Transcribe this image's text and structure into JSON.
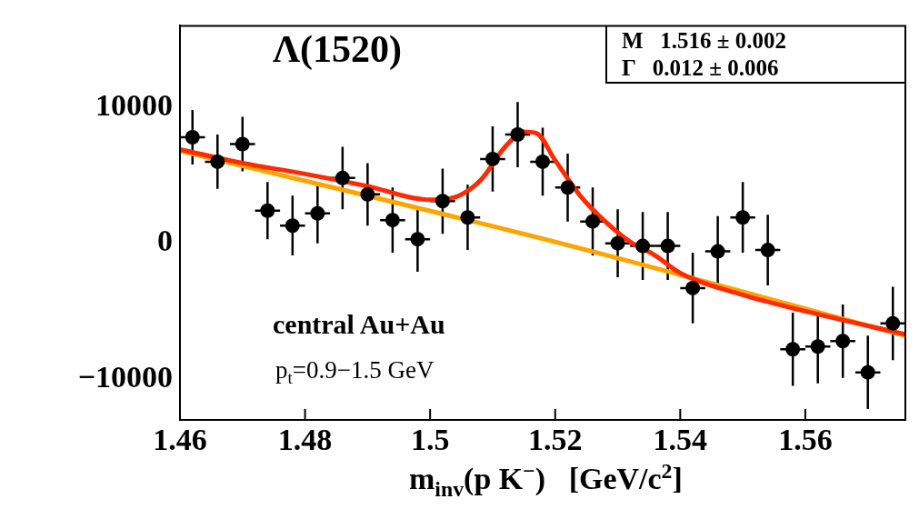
{
  "chart_data": {
    "type": "scatter",
    "title": "Λ(1520)",
    "xlabel": "m$_{inv}$(p K$^{−}$)   [GeV/c$^{2}$]",
    "annotations": [
      "M   1.516 ± 0.002",
      "Γ   0.012 ± 0.006",
      "central Au+Au",
      "p$_{t}$=0.9−1.5 GeV"
    ],
    "xlim": [
      1.46,
      1.576
    ],
    "xticks": [
      1.46,
      1.48,
      1.5,
      1.52,
      1.54,
      1.56
    ],
    "ylim": [
      -13000,
      16000
    ],
    "yticks": [
      {
        "value": -10000,
        "label": "−10000"
      },
      0,
      10000
    ],
    "grid": false,
    "legend": false,
    "series": [
      {
        "color": "#000000",
        "marker": "circle",
        "x": [
          1.462,
          1.466,
          1.47,
          1.474,
          1.478,
          1.482,
          1.486,
          1.49,
          1.494,
          1.498,
          1.502,
          1.506,
          1.51,
          1.514,
          1.518,
          1.522,
          1.526,
          1.53,
          1.534,
          1.538,
          1.542,
          1.546,
          1.55,
          1.554,
          1.558,
          1.562,
          1.566,
          1.57,
          1.574
        ],
        "values": [
          7800,
          6000,
          7300,
          2400,
          1300,
          2200,
          4800,
          3600,
          1700,
          300,
          3100,
          1900,
          6200,
          8000,
          6000,
          4100,
          1600,
          0,
          -200,
          -200,
          -3300,
          -600,
          1900,
          -500,
          -7800,
          -7600,
          -7200,
          -9500,
          -5900
        ],
        "errors": [
          2000,
          2000,
          2000,
          2100,
          2200,
          2200,
          2300,
          2300,
          2400,
          2400,
          2400,
          2400,
          2400,
          2400,
          2500,
          2500,
          2500,
          2500,
          2500,
          2500,
          2600,
          2600,
          2600,
          2600,
          2700,
          2700,
          2700,
          2700,
          2700
        ],
        "xerrors": [
          0.002,
          0.002,
          0.002,
          0.002,
          0.002,
          0.002,
          0.002,
          0.002,
          0.002,
          0.002,
          0.002,
          0.002,
          0.002,
          0.002,
          0.002,
          0.002,
          0.002,
          0.002,
          0.002,
          0.002,
          0.002,
          0.002,
          0.002,
          0.002,
          0.002,
          0.002,
          0.002,
          0.002,
          0.002
        ]
      },
      {
        "type": "line",
        "color": "#ff2a00",
        "marker": "none",
        "x": [
          1.46,
          1.47,
          1.48,
          1.49,
          1.5,
          1.504,
          1.508,
          1.512,
          1.515,
          1.517,
          1.52,
          1.524,
          1.528,
          1.532,
          1.536,
          1.54,
          1.55,
          1.56,
          1.576
        ],
        "values": [
          6900,
          5900,
          5100,
          4200,
          3200,
          3400,
          4600,
          7100,
          8200,
          8100,
          6100,
          3500,
          1600,
          100,
          -900,
          -2200,
          -3800,
          -5000,
          -6700
        ]
      },
      {
        "type": "line",
        "color": "#ffa500",
        "marker": "none",
        "x": [
          1.46,
          1.52,
          1.576
        ],
        "values": [
          6800,
          100,
          -6800
        ]
      }
    ]
  }
}
